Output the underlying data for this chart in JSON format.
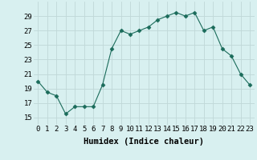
{
  "x": [
    0,
    1,
    2,
    3,
    4,
    5,
    6,
    7,
    8,
    9,
    10,
    11,
    12,
    13,
    14,
    15,
    16,
    17,
    18,
    19,
    20,
    21,
    22,
    23
  ],
  "y": [
    20,
    18.5,
    18,
    15.5,
    16.5,
    16.5,
    16.5,
    19.5,
    24.5,
    27,
    26.5,
    27,
    27.5,
    28.5,
    29,
    29.5,
    29,
    29.5,
    27,
    27.5,
    24.5,
    23.5,
    21,
    19.5
  ],
  "line_color": "#1a6b5a",
  "marker": "D",
  "marker_size": 2.5,
  "bg_color": "#d8f0f0",
  "grid_color": "#c0d8d8",
  "xlabel": "Humidex (Indice chaleur)",
  "ylim": [
    14,
    31
  ],
  "xlim": [
    -0.5,
    23.5
  ],
  "yticks": [
    15,
    17,
    19,
    21,
    23,
    25,
    27,
    29
  ],
  "xticks": [
    0,
    1,
    2,
    3,
    4,
    5,
    6,
    7,
    8,
    9,
    10,
    11,
    12,
    13,
    14,
    15,
    16,
    17,
    18,
    19,
    20,
    21,
    22,
    23
  ],
  "xtick_labels": [
    "0",
    "1",
    "2",
    "3",
    "4",
    "5",
    "6",
    "7",
    "8",
    "9",
    "10",
    "11",
    "12",
    "13",
    "14",
    "15",
    "16",
    "17",
    "18",
    "19",
    "20",
    "21",
    "22",
    "23"
  ],
  "xlabel_fontsize": 7.5,
  "tick_fontsize": 6.5
}
